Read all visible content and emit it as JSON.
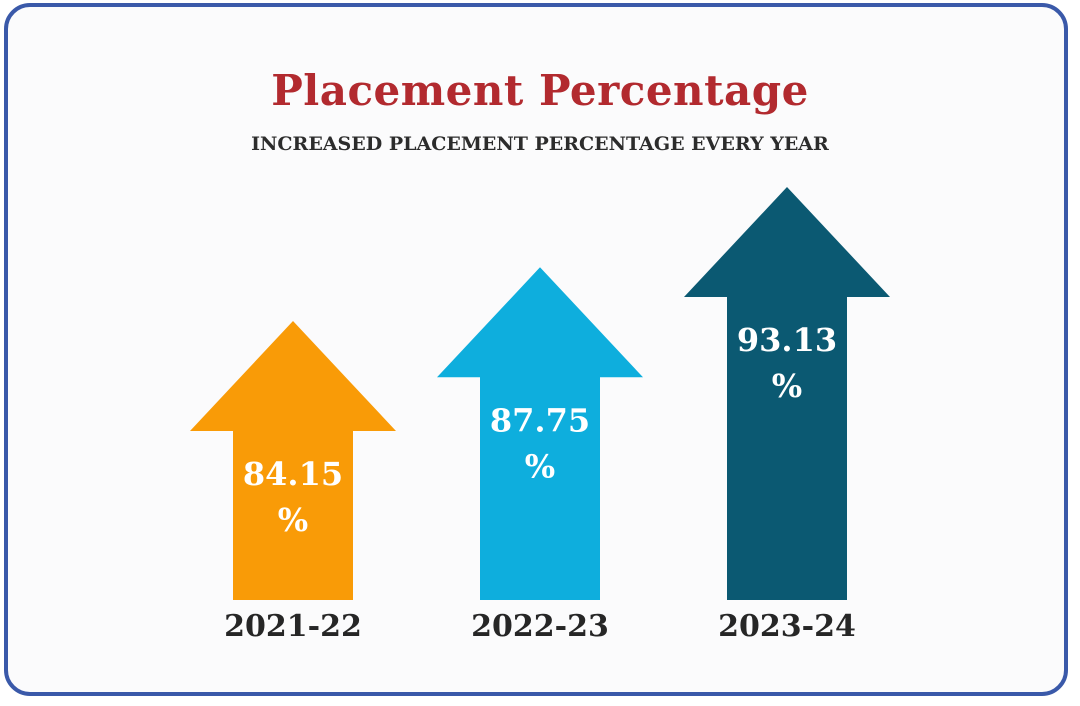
{
  "chart_data": {
    "type": "bar",
    "title": "Placement Percentage",
    "subtitle": "INCREASED PLACEMENT PERCENTAGE EVERY YEAR",
    "categories": [
      "2021-22",
      "2022-23",
      "2023-24"
    ],
    "values": [
      84.15,
      87.75,
      93.13
    ],
    "value_labels": [
      "84.15",
      "87.75",
      "93.13"
    ],
    "unit": "%",
    "colors": [
      "#f99b07",
      "#0eaedd",
      "#0b5972"
    ],
    "title_color": "#b22a2f",
    "border_color": "#3a59a9"
  }
}
